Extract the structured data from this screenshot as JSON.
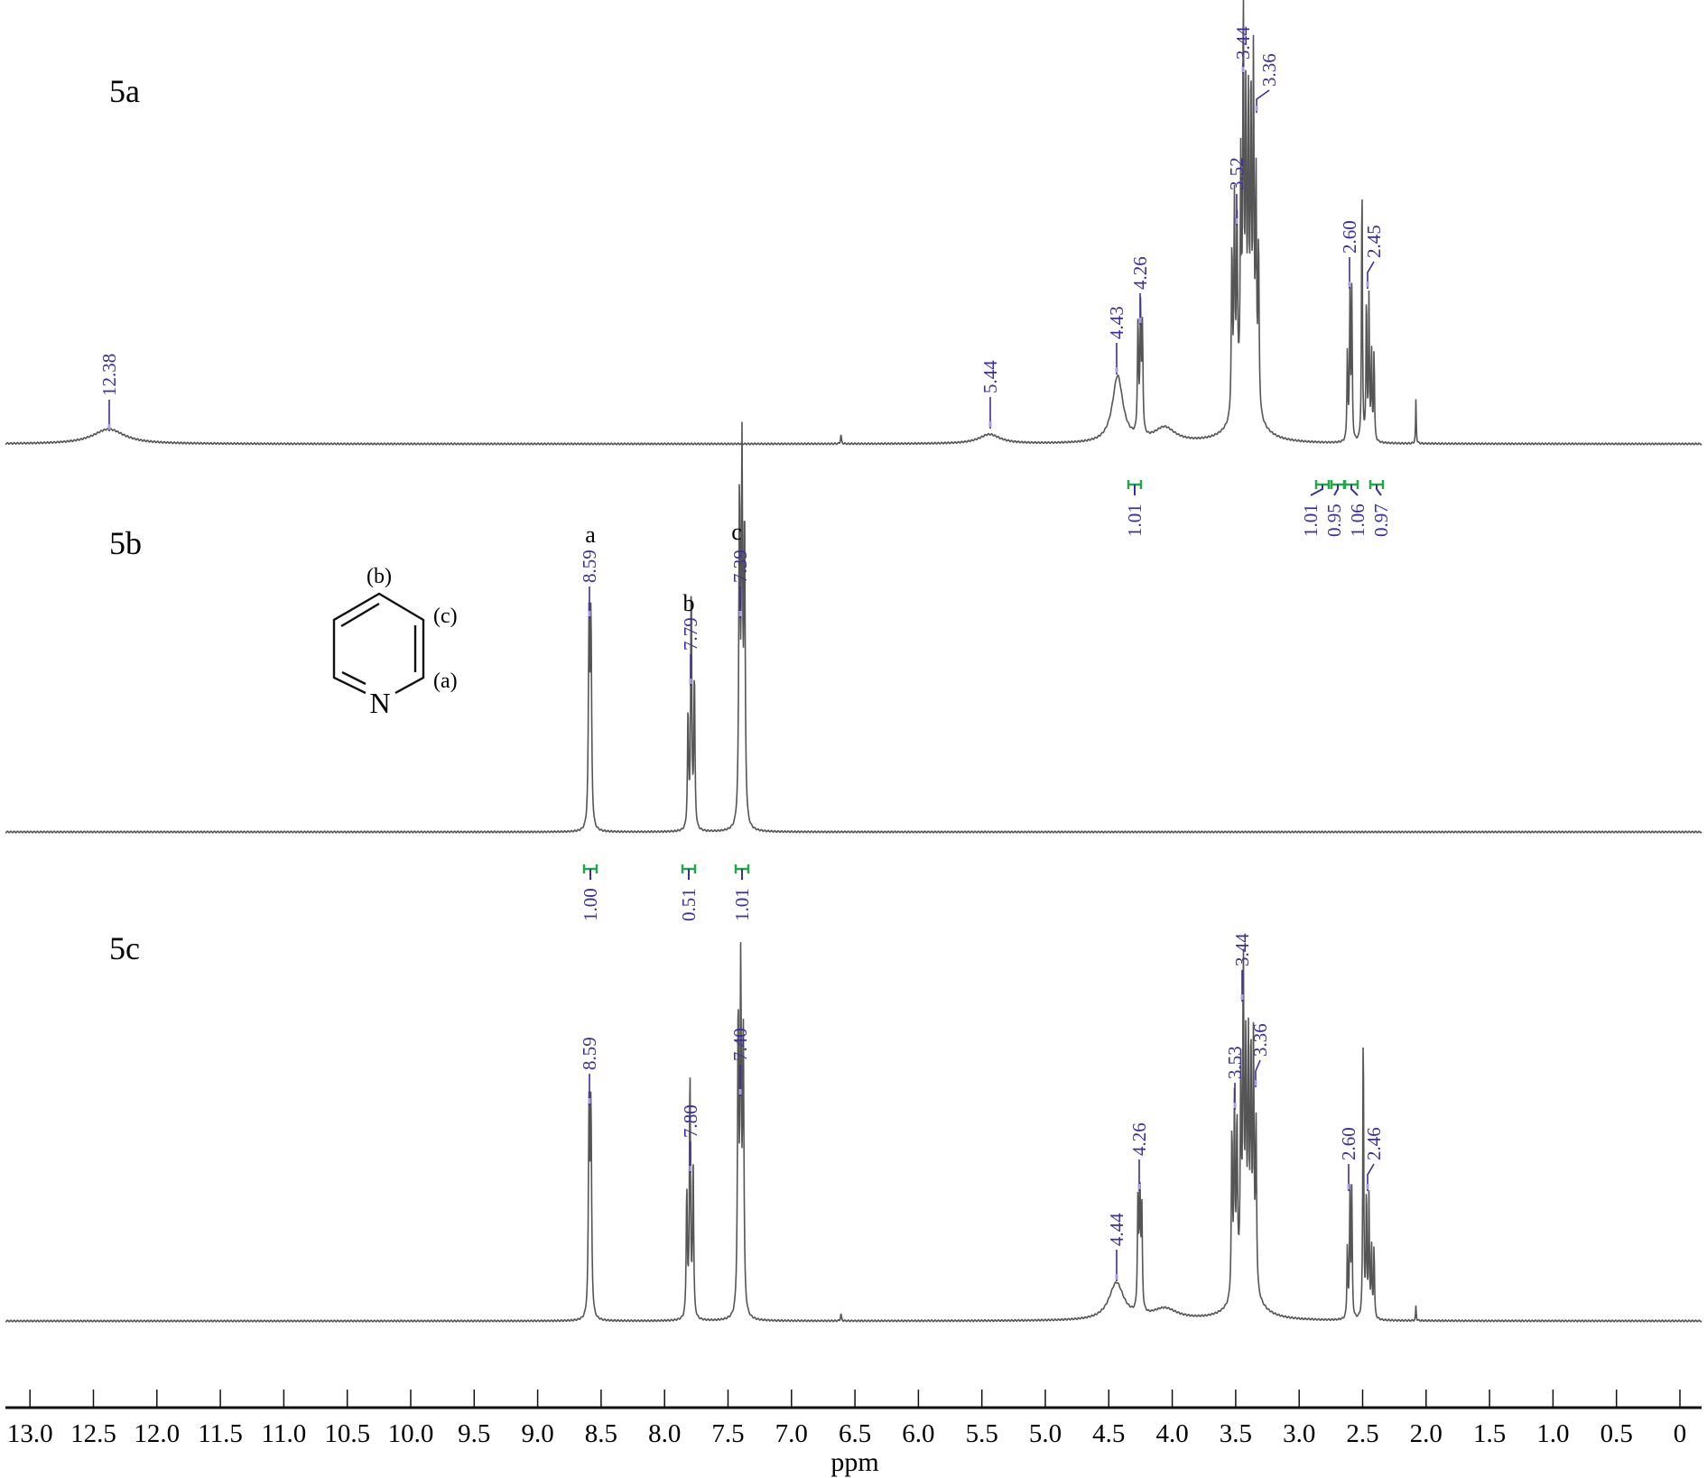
{
  "chart_data": {
    "type": "line",
    "xlabel": "ppm",
    "xlim": [
      13.0,
      0
    ],
    "x_reversed": true,
    "x_ticks": [
      "13.0",
      "12.5",
      "12.0",
      "11.5",
      "11.0",
      "10.5",
      "10.0",
      "9.5",
      "9.0",
      "8.5",
      "8.0",
      "7.5",
      "7.0",
      "6.5",
      "6.0",
      "5.5",
      "5.0",
      "4.5",
      "4.0",
      "3.5",
      "3.0",
      "2.5",
      "2.0",
      "1.5",
      "1.0",
      "0.5",
      "0"
    ],
    "grid": false,
    "colors": {
      "spectrum": "#555555",
      "peak_label": "#3a2f9c",
      "integral": "#22a84a"
    },
    "spectra": [
      {
        "name": "5a",
        "peak_labels": [
          "12.38",
          "5.44",
          "4.43",
          "4.26",
          "3.52",
          "3.44",
          "3.36",
          "2.60",
          "2.45"
        ],
        "integrals": [
          "1.01",
          "1.01",
          "0.95",
          "1.06",
          "0.97"
        ],
        "peaks": [
          [
            12.38,
            0.04,
            0.15
          ],
          [
            6.61,
            0.025,
            0.004
          ],
          [
            5.44,
            0.025,
            0.1
          ],
          [
            4.43,
            0.18,
            0.05
          ],
          [
            4.06,
            0.04,
            0.1
          ],
          [
            4.27,
            0.3,
            0.005
          ],
          [
            4.25,
            0.33,
            0.005
          ],
          [
            4.235,
            0.28,
            0.005
          ],
          [
            3.53,
            0.45,
            0.005
          ],
          [
            3.51,
            0.55,
            0.005
          ],
          [
            3.49,
            0.5,
            0.005
          ],
          [
            3.46,
            0.6,
            0.005
          ],
          [
            3.44,
            1.0,
            0.005
          ],
          [
            3.42,
            0.75,
            0.005
          ],
          [
            3.4,
            0.72,
            0.005
          ],
          [
            3.38,
            0.8,
            0.005
          ],
          [
            3.36,
            0.9,
            0.005
          ],
          [
            3.34,
            0.6,
            0.005
          ],
          [
            3.32,
            0.45,
            0.005
          ],
          [
            3.42,
            0.15,
            0.09
          ],
          [
            2.62,
            0.25,
            0.004
          ],
          [
            2.6,
            0.4,
            0.004
          ],
          [
            2.585,
            0.4,
            0.004
          ],
          [
            2.505,
            0.73,
            0.004
          ],
          [
            2.47,
            0.4,
            0.004
          ],
          [
            2.45,
            0.38,
            0.004
          ],
          [
            2.43,
            0.25,
            0.004
          ],
          [
            2.41,
            0.25,
            0.004
          ],
          [
            2.08,
            0.12,
            0.003
          ]
        ]
      },
      {
        "name": "5b",
        "peak_labels": [
          "8.59",
          "7.79",
          "7.39"
        ],
        "assignments": [
          "a",
          "b",
          "c"
        ],
        "integrals": [
          "1.00",
          "0.51",
          "1.01"
        ],
        "peaks": [
          [
            8.595,
            0.55,
            0.006
          ],
          [
            8.58,
            0.55,
            0.006
          ],
          [
            7.815,
            0.32,
            0.005
          ],
          [
            7.79,
            0.67,
            0.005
          ],
          [
            7.765,
            0.42,
            0.005
          ],
          [
            7.41,
            0.88,
            0.006
          ],
          [
            7.39,
            0.97,
            0.006
          ],
          [
            7.37,
            0.8,
            0.006
          ]
        ]
      },
      {
        "name": "5c",
        "peak_labels": [
          "8.59",
          "7.80",
          "7.40",
          "4.44",
          "4.26",
          "3.53",
          "3.44",
          "3.36",
          "2.60",
          "2.46"
        ],
        "integrals": [],
        "peaks": [
          [
            8.595,
            0.55,
            0.006
          ],
          [
            8.58,
            0.55,
            0.006
          ],
          [
            7.825,
            0.35,
            0.005
          ],
          [
            7.8,
            0.67,
            0.005
          ],
          [
            7.775,
            0.42,
            0.005
          ],
          [
            7.42,
            0.8,
            0.006
          ],
          [
            7.4,
            0.9,
            0.006
          ],
          [
            7.38,
            0.75,
            0.006
          ],
          [
            6.61,
            0.02,
            0.004
          ],
          [
            4.44,
            0.1,
            0.07
          ],
          [
            4.27,
            0.3,
            0.005
          ],
          [
            4.255,
            0.33,
            0.005
          ],
          [
            4.24,
            0.28,
            0.005
          ],
          [
            4.06,
            0.03,
            0.12
          ],
          [
            3.53,
            0.45,
            0.005
          ],
          [
            3.51,
            0.5,
            0.005
          ],
          [
            3.49,
            0.45,
            0.005
          ],
          [
            3.46,
            0.55,
            0.005
          ],
          [
            3.44,
            0.84,
            0.005
          ],
          [
            3.42,
            0.6,
            0.005
          ],
          [
            3.4,
            0.6,
            0.005
          ],
          [
            3.38,
            0.62,
            0.005
          ],
          [
            3.36,
            0.65,
            0.005
          ],
          [
            3.34,
            0.45,
            0.005
          ],
          [
            3.42,
            0.12,
            0.09
          ],
          [
            2.62,
            0.2,
            0.004
          ],
          [
            2.6,
            0.34,
            0.004
          ],
          [
            2.585,
            0.34,
            0.004
          ],
          [
            2.495,
            0.82,
            0.004
          ],
          [
            2.47,
            0.35,
            0.004
          ],
          [
            2.45,
            0.32,
            0.004
          ],
          [
            2.43,
            0.2,
            0.004
          ],
          [
            2.41,
            0.2,
            0.004
          ],
          [
            2.08,
            0.04,
            0.003
          ]
        ]
      }
    ],
    "structure": {
      "atom": "N",
      "positions": [
        "(b)",
        "(c)",
        "(a)"
      ]
    }
  }
}
